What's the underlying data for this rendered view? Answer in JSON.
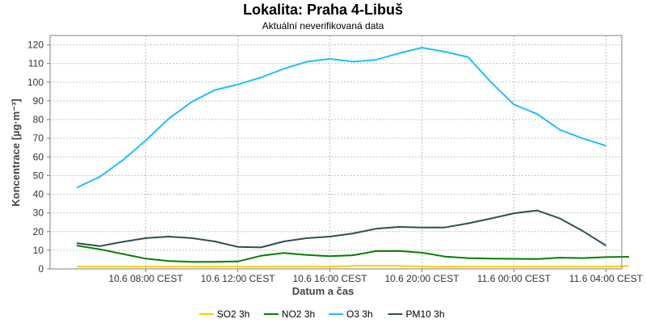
{
  "chart_data": {
    "type": "line",
    "title": "Lokalita: Praha 4-Libuš",
    "subtitle": "Aktuální neverifikovaná data",
    "xlabel": "Datum a čas",
    "ylabel": "Koncentrace [µg·m⁻³]",
    "ylim": [
      0,
      125
    ],
    "yticks": [
      0,
      10,
      20,
      30,
      40,
      50,
      60,
      70,
      80,
      90,
      100,
      110,
      120
    ],
    "grid": true,
    "legend_position": "bottom",
    "x": [
      "10.6 05:00 CEST",
      "10.6 06:00 CEST",
      "10.6 07:00 CEST",
      "10.6 08:00 CEST",
      "10.6 09:00 CEST",
      "10.6 10:00 CEST",
      "10.6 11:00 CEST",
      "10.6 12:00 CEST",
      "10.6 13:00 CEST",
      "10.6 14:00 CEST",
      "10.6 15:00 CEST",
      "10.6 16:00 CEST",
      "10.6 17:00 CEST",
      "10.6 18:00 CEST",
      "10.6 19:00 CEST",
      "10.6 20:00 CEST",
      "10.6 21:00 CEST",
      "10.6 22:00 CEST",
      "10.6 23:00 CEST",
      "11.6 00:00 CEST",
      "11.6 01:00 CEST",
      "11.6 02:00 CEST",
      "11.6 03:00 CEST",
      "11.6 04:00 CEST",
      "11.6 05:00 CEST"
    ],
    "xticks": [
      {
        "label": "10.6 08:00 CEST",
        "index": 3
      },
      {
        "label": "10.6 12:00 CEST",
        "index": 7
      },
      {
        "label": "10.6 16:00 CEST",
        "index": 11
      },
      {
        "label": "10.6 20:00 CEST",
        "index": 15
      },
      {
        "label": "11.6 00:00 CEST",
        "index": 19
      },
      {
        "label": "11.6 04:00 CEST",
        "index": 23
      }
    ],
    "series": [
      {
        "name": "SO2 3h",
        "color": "#ffcc00",
        "values": [
          1.2,
          1.2,
          1.2,
          1.2,
          1.2,
          1.2,
          1.2,
          1.2,
          1.2,
          1.2,
          1.2,
          1.2,
          1.6,
          1.6,
          1.6,
          1.2,
          1.2,
          1.2,
          1.2,
          1.2,
          1.2,
          1.2,
          1.2,
          1.2,
          1.6
        ]
      },
      {
        "name": "NO2 3h",
        "color": "#008000",
        "values": [
          12.5,
          10.5,
          8,
          5.5,
          4.2,
          3.8,
          3.8,
          4,
          7,
          8.5,
          7.5,
          6.8,
          7.3,
          9.5,
          9.6,
          8.7,
          6.6,
          5.8,
          5.5,
          5.4,
          5.3,
          6,
          5.8,
          6.3,
          6.5
        ]
      },
      {
        "name": "O3 3h",
        "color": "#1ebeff",
        "values": [
          43.5,
          49.3,
          58.2,
          68.8,
          80.5,
          89.5,
          95.8,
          98.8,
          102.5,
          107.2,
          111,
          112.5,
          111,
          112,
          115.5,
          118.5,
          116.3,
          113.5,
          100,
          88,
          83,
          74.5,
          69.8,
          66,
          null
        ]
      },
      {
        "name": "PM10 3h",
        "color": "#2f4f4f",
        "values": [
          13.8,
          12.2,
          14.5,
          16.5,
          17.3,
          16.5,
          14.7,
          11.8,
          11.5,
          14.7,
          16.5,
          17.3,
          19,
          21.5,
          22.5,
          22.2,
          22.2,
          24.4,
          27,
          29.8,
          31.3,
          27,
          20.2,
          12.5,
          null
        ]
      }
    ]
  }
}
